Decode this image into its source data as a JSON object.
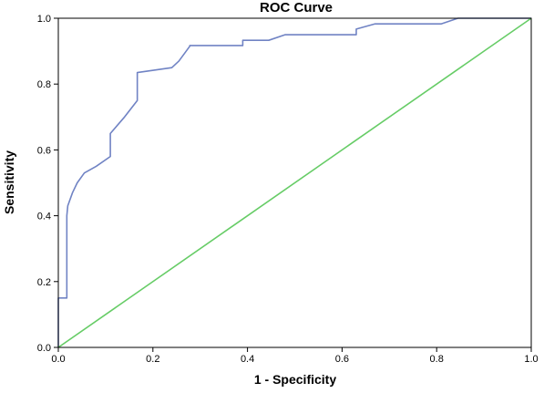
{
  "chart_data": {
    "type": "line",
    "title": "ROC Curve",
    "xlabel": "1 - Specificity",
    "ylabel": "Sensitivity",
    "xlim": [
      0.0,
      1.0
    ],
    "ylim": [
      0.0,
      1.0
    ],
    "x_ticks": [
      "0.0",
      "0.2",
      "0.4",
      "0.6",
      "0.8",
      "1.0"
    ],
    "y_ticks": [
      "0.0",
      "0.2",
      "0.4",
      "0.6",
      "0.8",
      "1.0"
    ],
    "grid": false,
    "legend": "none",
    "series": [
      {
        "color": "#7083c4",
        "x": [
          0.0,
          0.0,
          0.018,
          0.018,
          0.02,
          0.03,
          0.04,
          0.055,
          0.08,
          0.11,
          0.11,
          0.14,
          0.167,
          0.167,
          0.24,
          0.255,
          0.278,
          0.278,
          0.39,
          0.39,
          0.445,
          0.48,
          0.63,
          0.63,
          0.67,
          0.81,
          0.845,
          1.0
        ],
        "y": [
          0.0,
          0.15,
          0.15,
          0.4,
          0.43,
          0.47,
          0.5,
          0.53,
          0.55,
          0.58,
          0.65,
          0.7,
          0.75,
          0.835,
          0.85,
          0.87,
          0.915,
          0.917,
          0.917,
          0.933,
          0.933,
          0.95,
          0.95,
          0.967,
          0.983,
          0.983,
          1.0,
          1.0
        ]
      },
      {
        "color": "#66cc66",
        "x": [
          0.0,
          1.0
        ],
        "y": [
          0.0,
          1.0
        ]
      }
    ]
  }
}
